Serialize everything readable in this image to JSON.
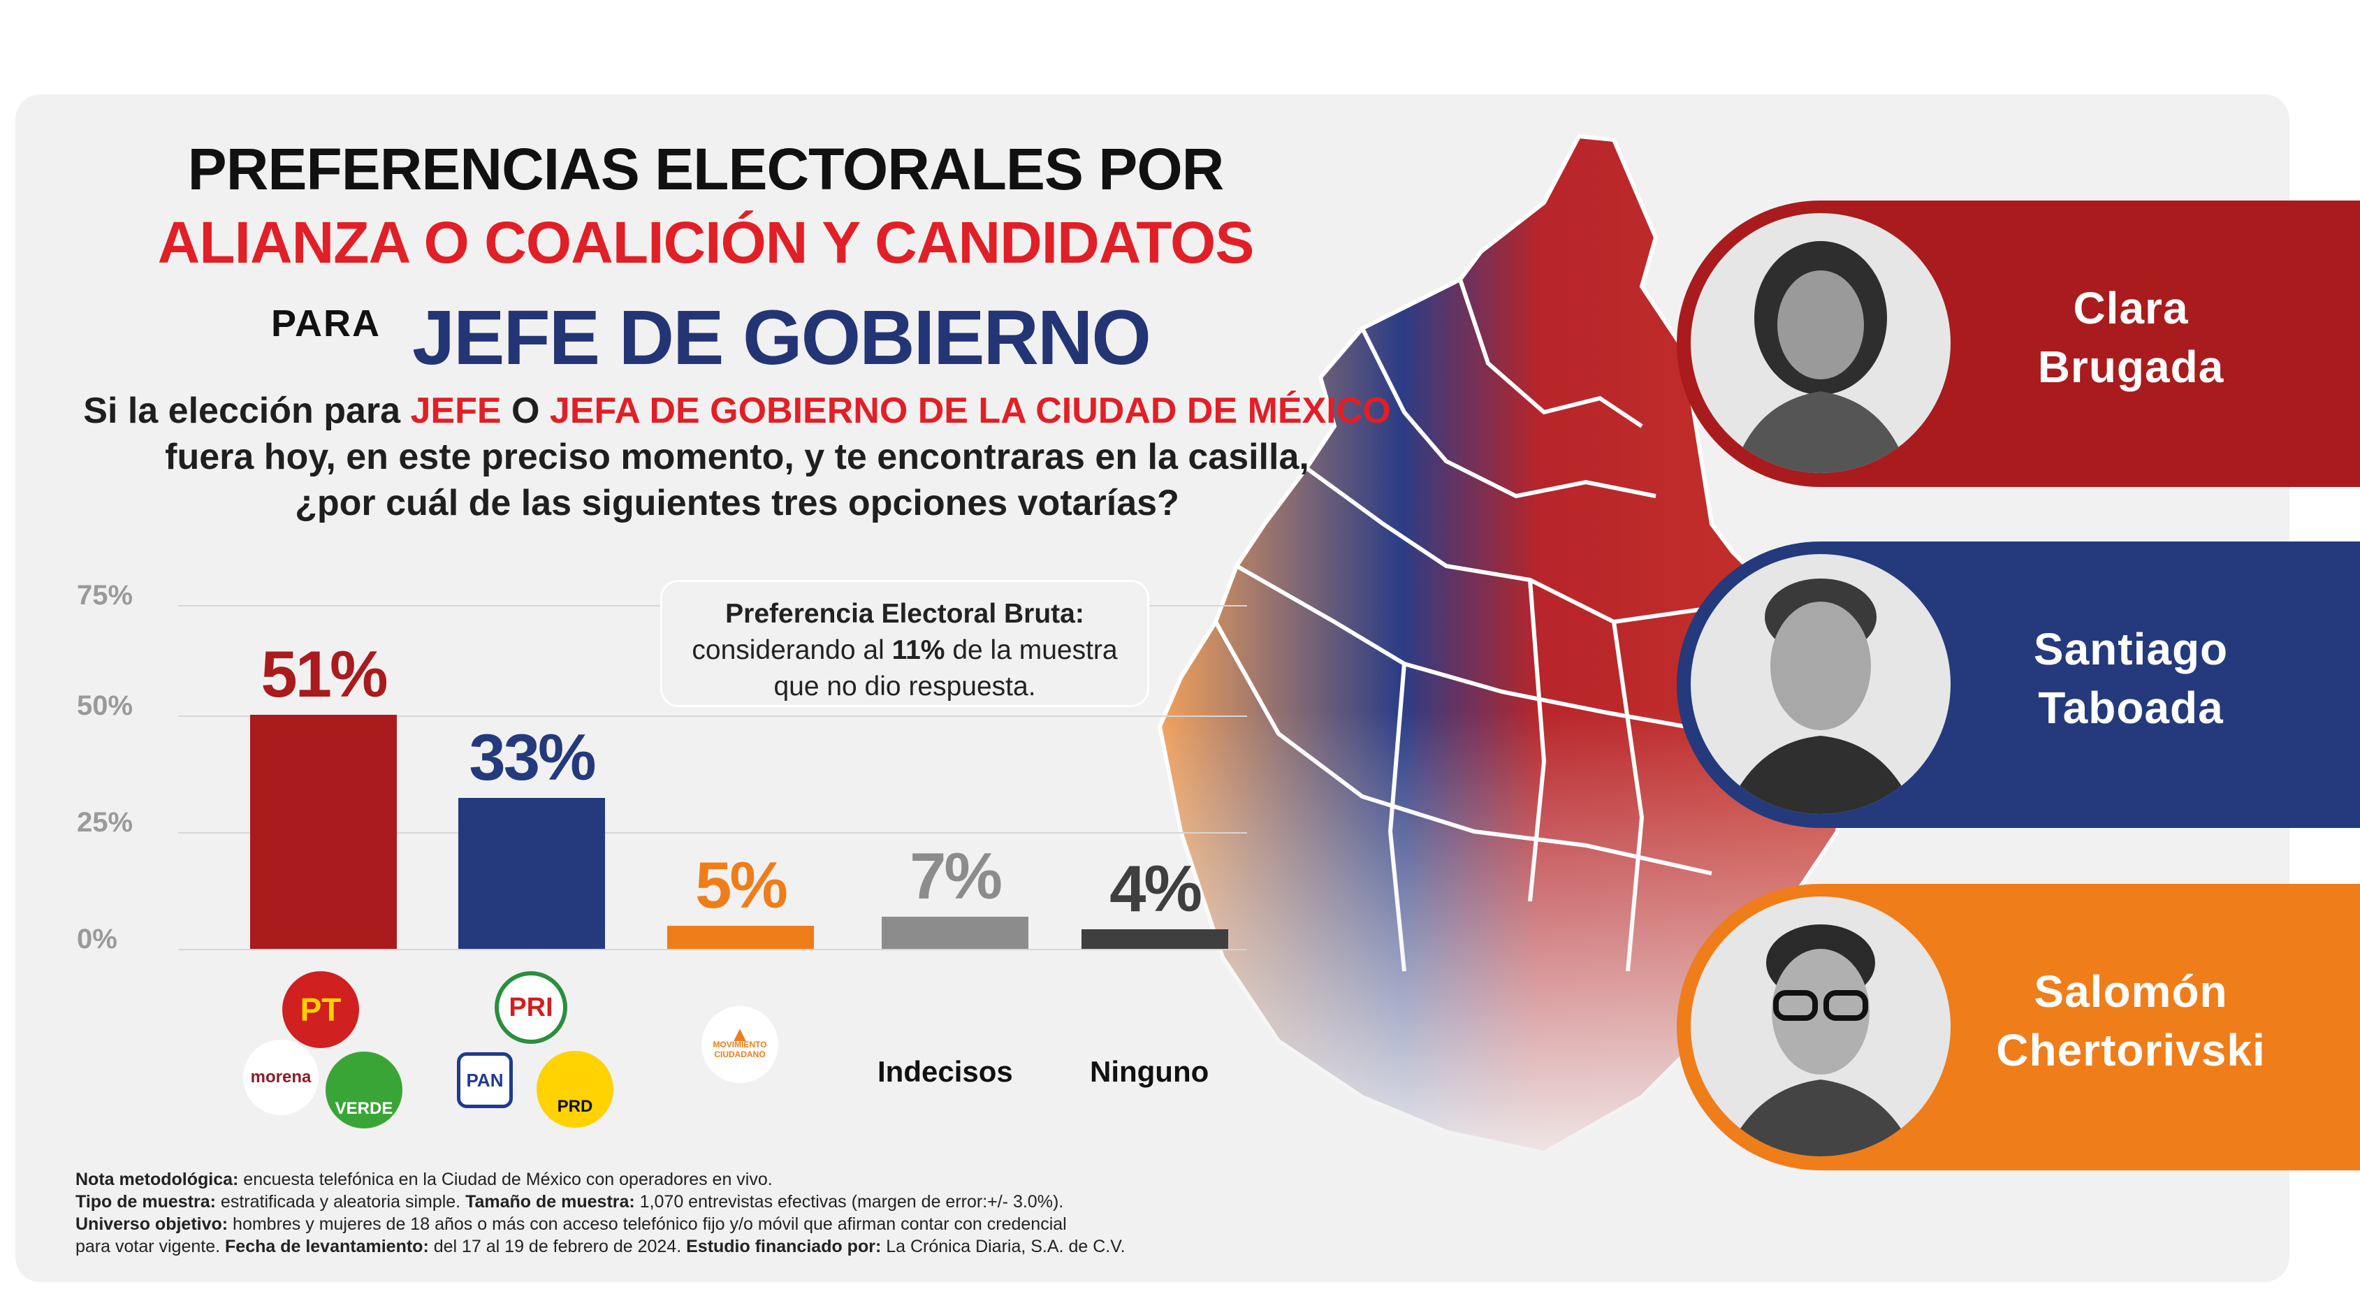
{
  "header": {
    "title_line1": "PREFERENCIAS ELECTORALES POR",
    "title_line2": "ALIANZA O COALICIÓN Y CANDIDATOS",
    "para": "PARA",
    "jefe": "JEFE DE GOBIERNO"
  },
  "question": {
    "l1_a": "Si la elección para ",
    "l1_b": "JEFE",
    "l1_c": " O ",
    "l1_d": "JEFA DE GOBIERNO DE LA CIUDAD DE MÉXICO",
    "l2": "fuera hoy, en este preciso momento, y te encontraras en la casilla,",
    "l3": "¿por cuál de las siguientes tres opciones votarías?"
  },
  "note": {
    "title": "Preferencia Electoral Bruta:",
    "l2a": "considerando al ",
    "l2b": "11%",
    "l2c": " de la muestra",
    "l3": "que no dio respuesta."
  },
  "chart_data": {
    "type": "bar",
    "categories": [
      "Clara Brugada",
      "Santiago Taboada",
      "Salomón Chertorivski",
      "Indecisos",
      "Ninguno"
    ],
    "values": [
      51,
      33,
      5,
      7,
      4
    ],
    "value_labels": [
      "51%",
      "33%",
      "5%",
      "7%",
      "4%"
    ],
    "colors": [
      "#a91b1d",
      "#243a7c",
      "#ef7d1a",
      "#8c8c8c",
      "#3f3f3f"
    ],
    "label_colors": [
      "#a91b1d",
      "#243a7c",
      "#ef7d1a",
      "#8c8c8c",
      "#3f3f3f"
    ],
    "y_ticks": [
      "0%",
      "25%",
      "50%",
      "75%"
    ],
    "ylim": [
      0,
      75
    ],
    "grid": true
  },
  "categories_text": {
    "indecisos": "Indecisos",
    "ninguno": "Ninguno"
  },
  "logos": {
    "pt": "PT",
    "morena": "morena",
    "verde": "VERDE",
    "pri": "PRI",
    "pan": "PAN",
    "prd": "PRD",
    "mc_line1": "MOVIMIENTO",
    "mc_line2": "CIUDADANO"
  },
  "candidates": [
    {
      "first": "Clara",
      "last": "Brugada",
      "color": "#a91b1d"
    },
    {
      "first": "Santiago",
      "last": "Taboada",
      "color": "#243a7c"
    },
    {
      "first": "Salomón",
      "last": "Chertorivski",
      "color": "#ef7d1a"
    }
  ],
  "methodology": {
    "k1": "Nota metodológica:",
    "v1": " encuesta telefónica en la Ciudad de México con operadores en vivo.",
    "k2": "Tipo de muestra:",
    "v2": " estratificada y aleatoria simple. ",
    "k3": "Tamaño de muestra:",
    "v3": " 1,070 entrevistas efectivas (margen de error:+/- 3.0%).",
    "k4": "Universo objetivo:",
    "v4": " hombres y mujeres de 18 años o más con acceso telefónico fijo y/o móvil que afirman contar con credencial",
    "v4b": "para votar vigente. ",
    "k5": "Fecha de levantamiento:",
    "v5": " del 17 al 19 de febrero de 2024. ",
    "k6": "Estudio financiado por:",
    "v6": " La Crónica Diaria, S.A. de C.V."
  }
}
